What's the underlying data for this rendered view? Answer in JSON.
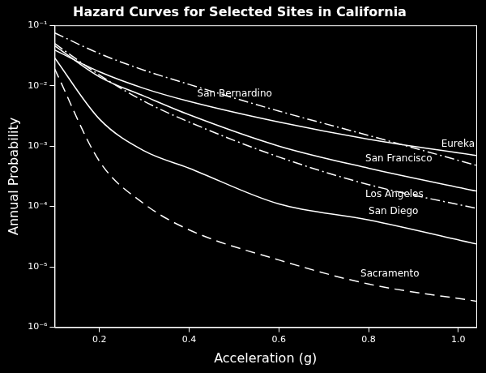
{
  "chart_data": {
    "type": "line",
    "title": "Hazard Curves for Selected Sites in California",
    "x_label": "Acceleration (g)",
    "y_label": "Annual Probability",
    "log": "y",
    "grid": false,
    "x": [
      0.1,
      0.2,
      0.3,
      0.4,
      0.6,
      0.8,
      1.04
    ],
    "series": [
      {
        "name": "Eureka",
        "color": "#ffffff",
        "line_style": "solid",
        "values": [
          0.039,
          0.017,
          0.009,
          0.0055,
          0.0025,
          0.0013,
          0.0007
        ]
      },
      {
        "name": "San Bernardino",
        "color": "#ffffff",
        "line_style": "dashdot",
        "values": [
          0.075,
          0.034,
          0.018,
          0.0105,
          0.0038,
          0.0015,
          0.00048
        ]
      },
      {
        "name": "San Francisco",
        "color": "#ffffff",
        "line_style": "solid",
        "values": [
          0.046,
          0.014,
          0.0067,
          0.0033,
          0.001,
          0.00043,
          0.00018
        ]
      },
      {
        "name": "Los Angeles",
        "color": "#ffffff",
        "line_style": "dashdot",
        "values": [
          0.05,
          0.015,
          0.0055,
          0.0025,
          0.00066,
          0.00023,
          9.3e-05
        ]
      },
      {
        "name": "San Diego",
        "color": "#ffffff",
        "line_style": "solid",
        "values": [
          0.029,
          0.0028,
          0.00083,
          0.00043,
          0.00011,
          6e-05,
          2.4e-05
        ]
      },
      {
        "name": "Sacramento",
        "color": "#ffffff",
        "line_style": "dashed",
        "values": [
          0.019,
          0.00056,
          0.00011,
          4.1e-05,
          1.3e-05,
          5.2e-06,
          2.7e-06
        ]
      }
    ],
    "xlim": [
      0.1,
      1.04
    ],
    "xticks": [
      0.2,
      0.4,
      0.6,
      0.8,
      {
        "value": 1,
        "label": "1.0"
      }
    ],
    "ylim": [
      1e-06,
      0.1
    ],
    "yticks": [
      {
        "value": 1e-06,
        "label": "10⁻⁶"
      },
      {
        "value": 1e-05,
        "label": "10⁻⁵"
      },
      {
        "value": 0.0001,
        "label": "10⁻⁴"
      },
      {
        "value": 0.001,
        "label": "10⁻³"
      },
      {
        "value": 0.01,
        "label": "10⁻²"
      },
      {
        "value": 0.1,
        "label": "10⁻¹"
      }
    ]
  }
}
